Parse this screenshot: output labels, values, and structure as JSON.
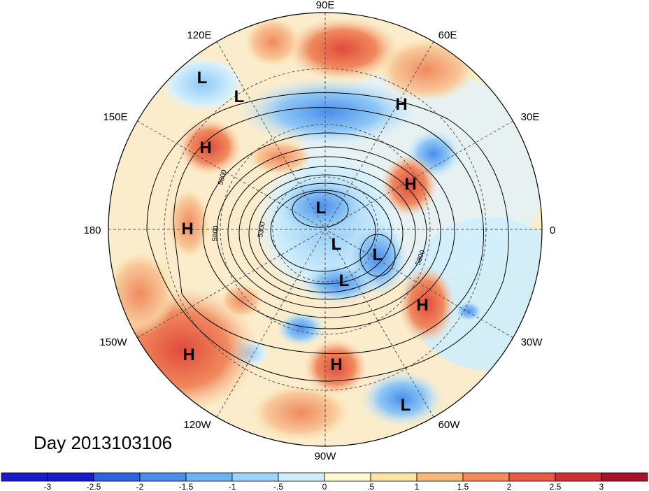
{
  "title": "Day 2013103106",
  "longitude_labels": [
    "90E",
    "60E",
    "30E",
    "0",
    "30W",
    "60W",
    "90W",
    "120W",
    "150W",
    "180",
    "150E",
    "120E"
  ],
  "contour_labels": [
    "5800",
    "5300",
    "5800",
    "5800"
  ],
  "pressure_centers": [
    "L",
    "L",
    "H",
    "H",
    "H",
    "H",
    "L",
    "L",
    "L",
    "L",
    "H",
    "H",
    "H",
    "L"
  ],
  "colorbar": {
    "ticks": [
      "-3",
      "-2.5",
      "-2",
      "-1.5",
      "-1",
      "-.5",
      "0",
      ".5",
      "1",
      "1.5",
      "2",
      "2.5",
      "3"
    ],
    "colors": [
      "#1a1acd",
      "#2f62e0",
      "#4a8eec",
      "#6eb3f3",
      "#9bd4f8",
      "#cfeefc",
      "#fdf7d4",
      "#fbe3a6",
      "#f7b87a",
      "#f28a5c",
      "#e85a48",
      "#d22e36",
      "#a8132a"
    ]
  }
}
